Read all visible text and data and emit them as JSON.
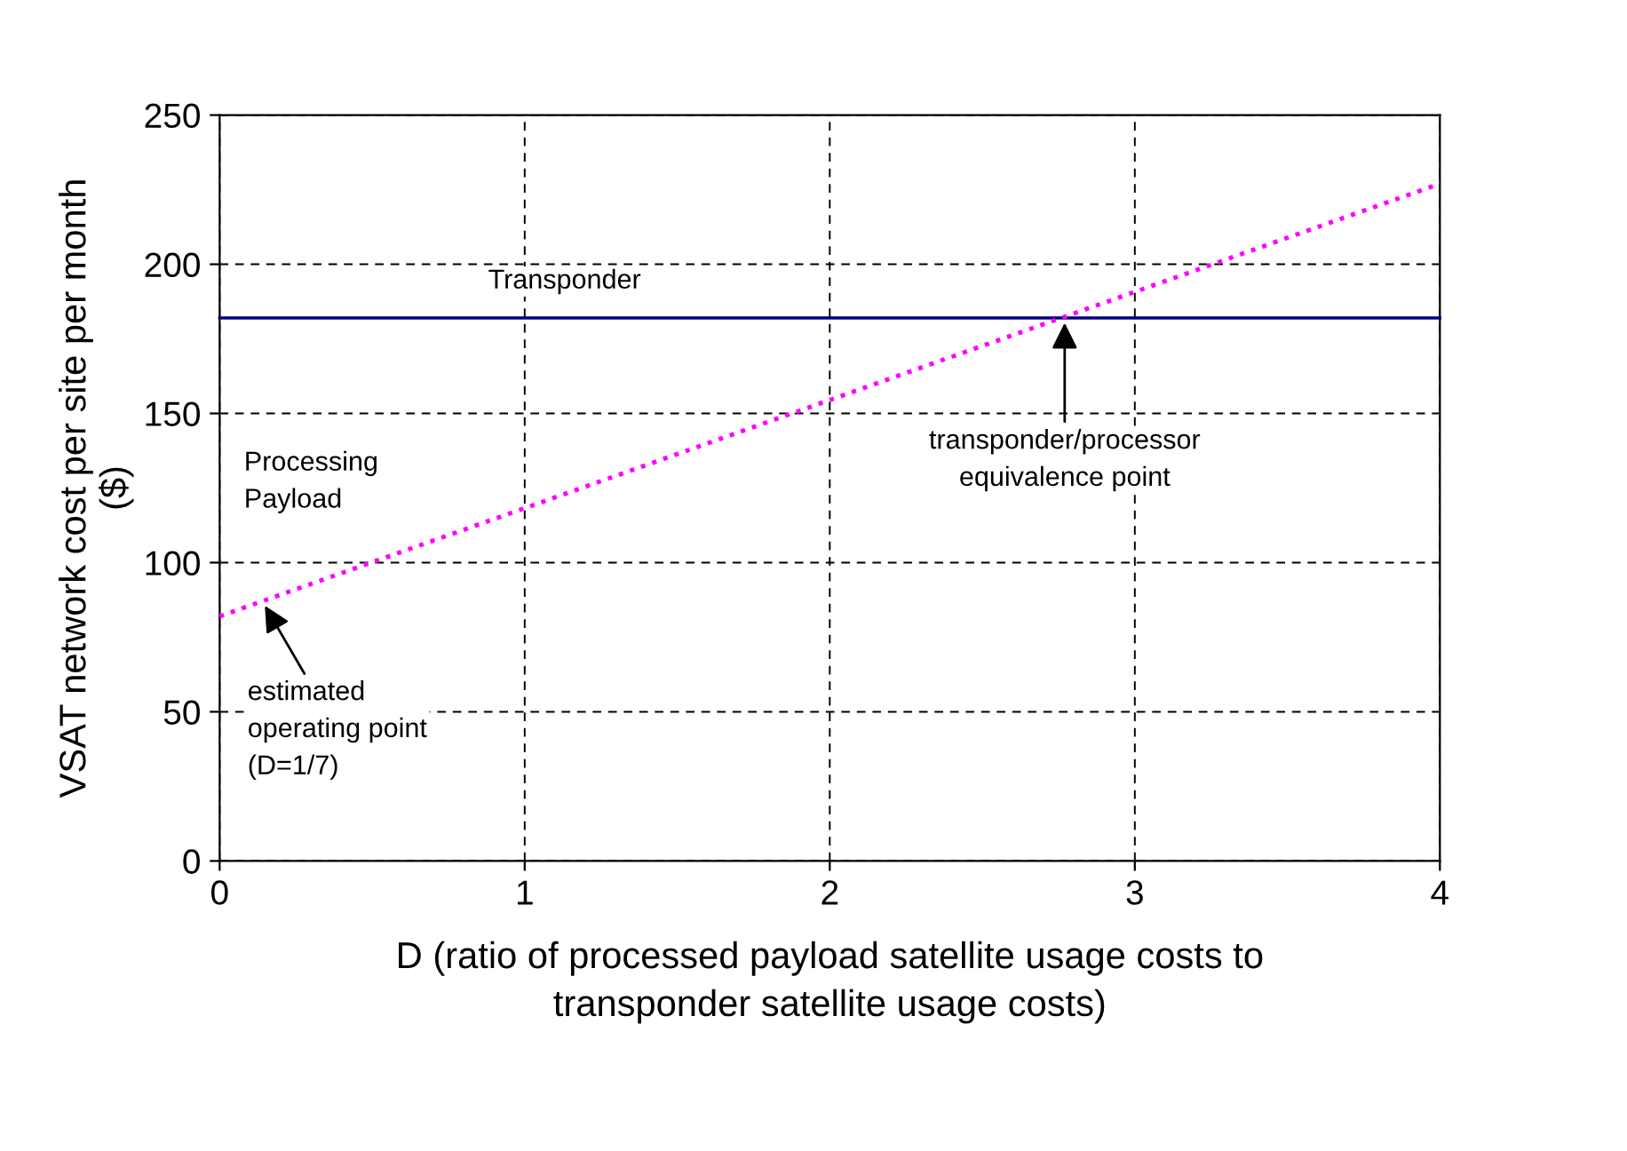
{
  "chart_data": {
    "type": "line",
    "xlabel": "D (ratio of processed payload satellite usage costs to\ntransponder satellite usage costs)",
    "ylabel": "VSAT network cost per site per month\n($)",
    "series": [
      {
        "name": "Transponder",
        "color": "#000080",
        "line_style": "solid",
        "values": [
          182,
          182
        ]
      },
      {
        "name": "Processing\nPayload",
        "color": "#ff00ff",
        "line_style": "dotted",
        "values": [
          82,
          227
        ]
      }
    ],
    "x": [
      0,
      4
    ],
    "annotations": [
      {
        "text": "estimated\noperating point\n(D=1/7)",
        "x": 0.14,
        "y": 87
      },
      {
        "text": "transponder/processor\nequivalence point",
        "x": 2.77,
        "y": 182
      }
    ],
    "xlim": [
      0,
      4
    ],
    "xticks": [
      0,
      1,
      2,
      3,
      4
    ],
    "ylim": [
      0,
      250
    ],
    "yticks": [
      0,
      50,
      100,
      150,
      200,
      250
    ],
    "grid": true,
    "legend": false,
    "marker": "none"
  }
}
